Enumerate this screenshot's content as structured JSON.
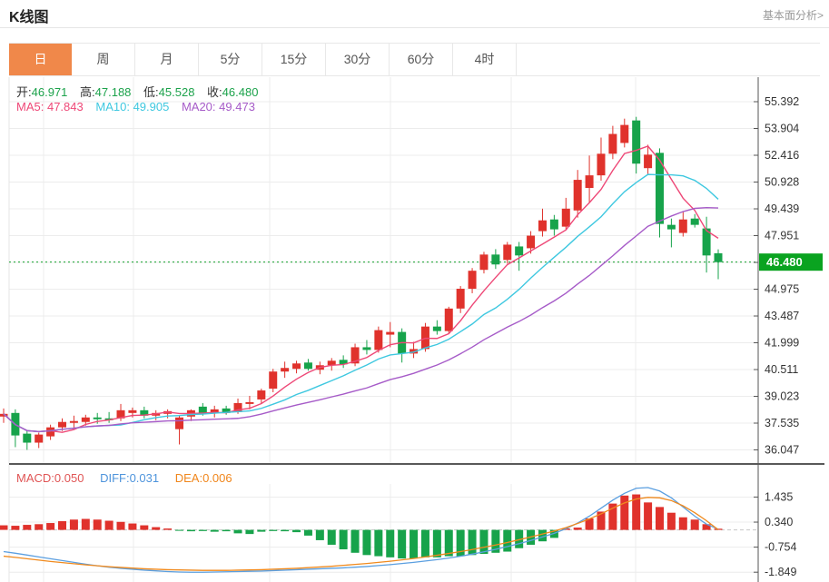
{
  "header": {
    "title": "K线图",
    "link": "基本面分析>"
  },
  "tabs": [
    {
      "label": "日",
      "active": true
    },
    {
      "label": "周",
      "active": false
    },
    {
      "label": "月",
      "active": false
    },
    {
      "label": "5分",
      "active": false
    },
    {
      "label": "15分",
      "active": false
    },
    {
      "label": "30分",
      "active": false
    },
    {
      "label": "60分",
      "active": false
    },
    {
      "label": "4时",
      "active": false
    }
  ],
  "legend": {
    "ohlc": [
      {
        "label": "开:",
        "value": "46.971"
      },
      {
        "label": "高:",
        "value": "47.188"
      },
      {
        "label": "低:",
        "value": "45.528"
      },
      {
        "label": "收:",
        "value": "46.480"
      }
    ],
    "ma": [
      {
        "label": "MA5:",
        "value": "47.843",
        "color": "#ee4877"
      },
      {
        "label": "MA10:",
        "value": "49.905",
        "color": "#3fc8e0"
      },
      {
        "label": "MA20:",
        "value": "49.473",
        "color": "#a65bc8"
      }
    ],
    "macd": [
      {
        "label": "MACD:",
        "value": "0.050",
        "color": "#e05555"
      },
      {
        "label": "DIFF:",
        "value": "0.031",
        "color": "#4e94dc"
      },
      {
        "label": "DEA:",
        "value": "0.006",
        "color": "#f0861c"
      }
    ]
  },
  "colors": {
    "rise": "#e0322c",
    "fall": "#17a34b",
    "ma5": "#ee4877",
    "ma10": "#3fc8e0",
    "ma20": "#a65bc8",
    "diff_line": "#5b9fe0",
    "dea_line": "#f08a1e",
    "active_tab": "#f0884a",
    "price_badge": "#0aa320",
    "price_line": "#12a12b",
    "value_green": "#1ca24b",
    "grid": "#ececec",
    "axis_text": "#333333"
  },
  "chart_data": {
    "type": "candlestick",
    "title": "K线图",
    "period": "日",
    "legend_position": "top-left",
    "grid": true,
    "current_price": 46.48,
    "current_price_label": "46.480",
    "y_ticks": [
      55.392,
      53.904,
      52.416,
      50.928,
      49.439,
      47.951,
      46.463,
      44.975,
      43.487,
      41.999,
      40.511,
      39.023,
      37.535,
      36.047
    ],
    "ylim": [
      35.8,
      56.4
    ],
    "last_candle": {
      "open": 46.971,
      "high": 47.188,
      "low": 45.528,
      "close": 46.48
    },
    "ma_values": {
      "MA5": 47.843,
      "MA10": 49.905,
      "MA20": 49.473
    },
    "candles_ohlc": [
      [
        37.9,
        38.35,
        37.55,
        38.05
      ],
      [
        38.1,
        38.3,
        36.2,
        36.85
      ],
      [
        36.95,
        37.15,
        36.05,
        36.45
      ],
      [
        36.45,
        37.0,
        36.15,
        36.9
      ],
      [
        36.8,
        37.45,
        36.6,
        37.3
      ],
      [
        37.3,
        37.8,
        37.1,
        37.6
      ],
      [
        37.55,
        37.95,
        37.2,
        37.65
      ],
      [
        37.6,
        38.0,
        37.4,
        37.85
      ],
      [
        37.85,
        38.1,
        37.5,
        37.75
      ],
      [
        37.8,
        38.15,
        37.55,
        37.7
      ],
      [
        37.8,
        38.6,
        37.65,
        38.25
      ],
      [
        38.1,
        38.4,
        37.85,
        38.25
      ],
      [
        38.25,
        38.45,
        37.8,
        37.95
      ],
      [
        37.95,
        38.25,
        37.7,
        38.1
      ],
      [
        38.05,
        38.3,
        37.8,
        38.2
      ],
      [
        37.2,
        37.95,
        36.35,
        37.85
      ],
      [
        37.9,
        38.3,
        37.65,
        38.25
      ],
      [
        38.45,
        38.65,
        37.95,
        38.05
      ],
      [
        38.1,
        38.5,
        37.85,
        38.3
      ],
      [
        38.35,
        38.5,
        38.0,
        38.1
      ],
      [
        38.15,
        38.9,
        38.05,
        38.65
      ],
      [
        38.6,
        39.05,
        38.3,
        38.7
      ],
      [
        38.85,
        39.45,
        38.6,
        39.35
      ],
      [
        39.45,
        40.55,
        39.25,
        40.4
      ],
      [
        40.4,
        40.95,
        40.05,
        40.6
      ],
      [
        40.55,
        41.0,
        40.3,
        40.85
      ],
      [
        40.9,
        41.1,
        40.45,
        40.55
      ],
      [
        40.5,
        40.95,
        40.25,
        40.75
      ],
      [
        40.75,
        41.15,
        40.45,
        41.0
      ],
      [
        41.05,
        41.3,
        40.6,
        40.8
      ],
      [
        40.85,
        41.95,
        40.7,
        41.75
      ],
      [
        41.75,
        42.15,
        41.35,
        41.6
      ],
      [
        41.6,
        42.9,
        41.45,
        42.7
      ],
      [
        42.45,
        43.15,
        41.75,
        42.6
      ],
      [
        42.6,
        42.8,
        40.9,
        41.4
      ],
      [
        41.4,
        42.05,
        41.15,
        41.65
      ],
      [
        41.65,
        43.1,
        41.5,
        42.9
      ],
      [
        42.9,
        43.25,
        42.45,
        42.65
      ],
      [
        42.65,
        44.0,
        42.5,
        43.9
      ],
      [
        43.9,
        45.15,
        43.65,
        45.0
      ],
      [
        45.0,
        46.15,
        44.75,
        46.0
      ],
      [
        46.05,
        47.05,
        45.85,
        46.9
      ],
      [
        46.9,
        47.2,
        46.1,
        46.35
      ],
      [
        46.6,
        47.6,
        46.4,
        47.45
      ],
      [
        47.35,
        47.6,
        46.0,
        46.85
      ],
      [
        47.25,
        48.2,
        46.95,
        47.95
      ],
      [
        48.2,
        49.45,
        47.9,
        48.8
      ],
      [
        48.85,
        49.1,
        47.95,
        48.3
      ],
      [
        48.45,
        50.05,
        48.3,
        49.45
      ],
      [
        49.35,
        51.6,
        48.95,
        51.05
      ],
      [
        50.6,
        52.4,
        49.8,
        51.3
      ],
      [
        51.3,
        53.4,
        51.0,
        52.5
      ],
      [
        52.5,
        54.05,
        52.2,
        53.6
      ],
      [
        53.1,
        54.45,
        52.85,
        54.1
      ],
      [
        54.35,
        54.55,
        51.4,
        51.95
      ],
      [
        51.7,
        53.0,
        51.35,
        52.45
      ],
      [
        52.55,
        52.8,
        47.85,
        48.6
      ],
      [
        48.55,
        48.9,
        47.3,
        48.3
      ],
      [
        48.1,
        49.3,
        47.9,
        48.85
      ],
      [
        48.9,
        49.15,
        48.4,
        48.55
      ],
      [
        48.35,
        49.0,
        45.9,
        46.85
      ],
      [
        46.971,
        47.188,
        45.528,
        46.48
      ]
    ],
    "ma_periods": [
      5,
      10,
      20
    ],
    "macd": {
      "values": {
        "MACD": 0.05,
        "DIFF": 0.031,
        "DEA": 0.006
      },
      "y_ticks": [
        1.435,
        0.34,
        -0.754,
        -1.849
      ],
      "hist": [
        0.2,
        0.18,
        0.22,
        0.25,
        0.3,
        0.38,
        0.45,
        0.48,
        0.45,
        0.4,
        0.35,
        0.28,
        0.2,
        0.12,
        0.06,
        -0.04,
        -0.06,
        -0.05,
        -0.08,
        -0.06,
        -0.15,
        -0.18,
        -0.08,
        -0.05,
        -0.06,
        -0.1,
        -0.25,
        -0.45,
        -0.65,
        -0.85,
        -1.0,
        -1.1,
        -1.15,
        -1.2,
        -1.25,
        -1.25,
        -1.2,
        -1.2,
        -1.15,
        -1.15,
        -1.1,
        -1.05,
        -1.0,
        -0.95,
        -0.8,
        -0.65,
        -0.5,
        -0.35,
        0.06,
        0.1,
        0.5,
        0.8,
        1.15,
        1.5,
        1.55,
        1.2,
        1.0,
        0.75,
        0.55,
        0.45,
        0.25,
        0.05
      ],
      "diff": [
        -0.95,
        -1.02,
        -1.1,
        -1.18,
        -1.26,
        -1.34,
        -1.42,
        -1.5,
        -1.57,
        -1.63,
        -1.68,
        -1.72,
        -1.76,
        -1.79,
        -1.82,
        -1.84,
        -1.85,
        -1.85,
        -1.84,
        -1.83,
        -1.82,
        -1.81,
        -1.8,
        -1.78,
        -1.76,
        -1.74,
        -1.72,
        -1.7,
        -1.68,
        -1.66,
        -1.63,
        -1.6,
        -1.56,
        -1.52,
        -1.47,
        -1.42,
        -1.36,
        -1.3,
        -1.23,
        -1.15,
        -1.06,
        -0.96,
        -0.85,
        -0.73,
        -0.6,
        -0.46,
        -0.31,
        -0.15,
        0.05,
        0.3,
        0.6,
        0.95,
        1.3,
        1.6,
        1.82,
        1.85,
        1.7,
        1.4,
        1.0,
        0.6,
        0.25,
        0.031
      ],
      "dea": [
        -1.15,
        -1.2,
        -1.26,
        -1.32,
        -1.38,
        -1.43,
        -1.48,
        -1.53,
        -1.57,
        -1.61,
        -1.64,
        -1.67,
        -1.7,
        -1.72,
        -1.74,
        -1.75,
        -1.76,
        -1.77,
        -1.77,
        -1.77,
        -1.76,
        -1.75,
        -1.74,
        -1.72,
        -1.7,
        -1.68,
        -1.65,
        -1.62,
        -1.59,
        -1.55,
        -1.51,
        -1.47,
        -1.42,
        -1.37,
        -1.31,
        -1.25,
        -1.18,
        -1.11,
        -1.03,
        -0.95,
        -0.86,
        -0.76,
        -0.66,
        -0.55,
        -0.43,
        -0.31,
        -0.18,
        -0.05,
        0.1,
        0.28,
        0.48,
        0.7,
        0.95,
        1.18,
        1.35,
        1.42,
        1.4,
        1.28,
        1.05,
        0.75,
        0.4,
        0.006
      ]
    }
  }
}
